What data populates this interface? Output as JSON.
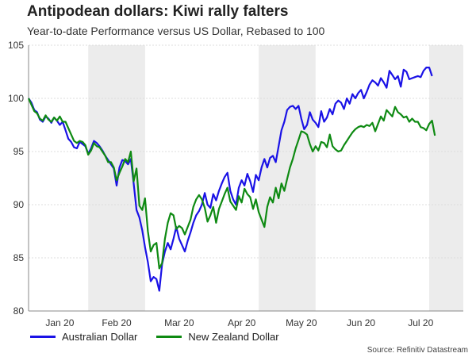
{
  "title": "Antipodean dollars: Kiwi rally falters",
  "subtitle": "Year-to-date Performance versus US Dollar, Rebased to 100",
  "source": "Source: Refinitiv Datastream",
  "colors": {
    "aud": "#1a12e6",
    "nzd": "#0e8a12",
    "shade": "#ececec",
    "grid": "#dddddd"
  },
  "chart_data": {
    "type": "line",
    "title": "Antipodean dollars: Kiwi rally falters",
    "xlabel": "",
    "ylabel": "",
    "ylim": [
      80,
      105
    ],
    "yticks": [
      80,
      85,
      90,
      95,
      100,
      105
    ],
    "xlim": [
      0,
      153
    ],
    "month_labels": [
      {
        "label": "Jan 20",
        "pos": 11
      },
      {
        "label": "Feb 20",
        "pos": 31
      },
      {
        "label": "Mar 20",
        "pos": 53
      },
      {
        "label": "Apr 20",
        "pos": 75
      },
      {
        "label": "May 20",
        "pos": 96
      },
      {
        "label": "Jun 20",
        "pos": 117
      },
      {
        "label": "Jul 20",
        "pos": 138
      }
    ],
    "shaded_bands": [
      [
        21,
        41
      ],
      [
        81,
        101
      ],
      [
        141,
        153
      ]
    ],
    "legend": [
      "Australian Dollar",
      "New Zealand Dollar"
    ],
    "series": [
      {
        "name": "Australian Dollar",
        "color": "#1a12e6",
        "points": [
          [
            0,
            100
          ],
          [
            1,
            99.6
          ],
          [
            2,
            98.9
          ],
          [
            3,
            98.7
          ],
          [
            4,
            98.0
          ],
          [
            5,
            97.8
          ],
          [
            6,
            98.3
          ],
          [
            7,
            98.1
          ],
          [
            8,
            97.7
          ],
          [
            9,
            98.2
          ],
          [
            10,
            97.9
          ],
          [
            11,
            97.5
          ],
          [
            12,
            97.8
          ],
          [
            13,
            97.0
          ],
          [
            14,
            96.2
          ],
          [
            15,
            95.9
          ],
          [
            16,
            95.4
          ],
          [
            17,
            95.3
          ],
          [
            18,
            95.9
          ],
          [
            19,
            95.7
          ],
          [
            20,
            95.5
          ],
          [
            21,
            94.8
          ],
          [
            22,
            95.3
          ],
          [
            23,
            96.0
          ],
          [
            24,
            95.8
          ],
          [
            25,
            95.5
          ],
          [
            26,
            95.1
          ],
          [
            27,
            94.6
          ],
          [
            28,
            94.2
          ],
          [
            29,
            93.8
          ],
          [
            30,
            93.4
          ],
          [
            31,
            91.8
          ],
          [
            32,
            93.5
          ],
          [
            33,
            94.2
          ],
          [
            34,
            94.1
          ],
          [
            35,
            93.8
          ],
          [
            36,
            94.3
          ],
          [
            37,
            92.0
          ],
          [
            38,
            89.5
          ],
          [
            39,
            88.8
          ],
          [
            40,
            87.6
          ],
          [
            41,
            86.0
          ],
          [
            42,
            84.6
          ],
          [
            43,
            82.8
          ],
          [
            44,
            83.2
          ],
          [
            45,
            83.0
          ],
          [
            46,
            81.9
          ],
          [
            47,
            84.4
          ],
          [
            48,
            85.6
          ],
          [
            49,
            86.4
          ],
          [
            50,
            85.8
          ],
          [
            51,
            86.8
          ],
          [
            52,
            87.9
          ],
          [
            53,
            86.8
          ],
          [
            54,
            86.2
          ],
          [
            55,
            85.6
          ],
          [
            56,
            86.6
          ],
          [
            57,
            87.4
          ],
          [
            58,
            88.3
          ],
          [
            59,
            89.0
          ],
          [
            60,
            89.4
          ],
          [
            61,
            90.0
          ],
          [
            62,
            91.1
          ],
          [
            63,
            90.0
          ],
          [
            64,
            89.7
          ],
          [
            65,
            91.0
          ],
          [
            66,
            90.4
          ],
          [
            67,
            91.3
          ],
          [
            68,
            92.0
          ],
          [
            69,
            92.6
          ],
          [
            70,
            93.0
          ],
          [
            71,
            91.3
          ],
          [
            72,
            90.5
          ],
          [
            73,
            90.0
          ],
          [
            74,
            91.6
          ],
          [
            75,
            92.3
          ],
          [
            76,
            91.8
          ],
          [
            77,
            92.9
          ],
          [
            78,
            92.2
          ],
          [
            79,
            91.2
          ],
          [
            80,
            92.8
          ],
          [
            81,
            92.3
          ],
          [
            82,
            93.5
          ],
          [
            83,
            94.3
          ],
          [
            84,
            93.5
          ],
          [
            85,
            94.4
          ],
          [
            86,
            94.6
          ],
          [
            87,
            94.0
          ],
          [
            88,
            95.5
          ],
          [
            89,
            97.0
          ],
          [
            90,
            97.8
          ],
          [
            91,
            98.9
          ],
          [
            92,
            99.2
          ],
          [
            93,
            99.3
          ],
          [
            94,
            99.0
          ],
          [
            95,
            99.3
          ],
          [
            96,
            98.1
          ],
          [
            97,
            97.1
          ],
          [
            98,
            97.5
          ],
          [
            99,
            98.7
          ],
          [
            100,
            98.0
          ],
          [
            101,
            97.7
          ],
          [
            102,
            97.3
          ],
          [
            103,
            98.8
          ],
          [
            104,
            97.8
          ],
          [
            105,
            98.2
          ],
          [
            106,
            99.0
          ],
          [
            107,
            98.5
          ],
          [
            108,
            99.5
          ],
          [
            109,
            99.8
          ],
          [
            110,
            99.6
          ],
          [
            111,
            99.0
          ],
          [
            112,
            100.0
          ],
          [
            113,
            99.5
          ],
          [
            114,
            100.4
          ],
          [
            115,
            100.0
          ],
          [
            116,
            100.5
          ],
          [
            117,
            100.8
          ],
          [
            118,
            100.0
          ],
          [
            119,
            100.6
          ],
          [
            120,
            101.3
          ],
          [
            121,
            101.7
          ],
          [
            122,
            101.5
          ],
          [
            123,
            101.2
          ],
          [
            124,
            101.9
          ],
          [
            125,
            101.5
          ],
          [
            126,
            101.0
          ],
          [
            127,
            102.6
          ],
          [
            128,
            102.2
          ],
          [
            129,
            101.8
          ],
          [
            130,
            102.1
          ],
          [
            131,
            101.1
          ],
          [
            132,
            102.7
          ],
          [
            133,
            102.5
          ],
          [
            134,
            101.8
          ],
          [
            135,
            101.9
          ],
          [
            136,
            102.0
          ],
          [
            137,
            102.1
          ],
          [
            138,
            102.0
          ],
          [
            139,
            102.6
          ],
          [
            140,
            102.9
          ],
          [
            141,
            102.9
          ],
          [
            142,
            102.1
          ]
        ]
      },
      {
        "name": "New Zealand Dollar",
        "color": "#0e8a12",
        "points": [
          [
            0,
            100
          ],
          [
            1,
            99.4
          ],
          [
            2,
            98.8
          ],
          [
            3,
            98.6
          ],
          [
            4,
            98.1
          ],
          [
            5,
            97.9
          ],
          [
            6,
            98.4
          ],
          [
            7,
            98.0
          ],
          [
            8,
            97.8
          ],
          [
            9,
            98.2
          ],
          [
            10,
            97.9
          ],
          [
            11,
            98.3
          ],
          [
            12,
            97.8
          ],
          [
            13,
            97.8
          ],
          [
            14,
            97.2
          ],
          [
            15,
            96.6
          ],
          [
            16,
            96.0
          ],
          [
            17,
            95.8
          ],
          [
            18,
            96.0
          ],
          [
            19,
            95.9
          ],
          [
            20,
            95.6
          ],
          [
            21,
            94.7
          ],
          [
            22,
            95.1
          ],
          [
            23,
            95.8
          ],
          [
            24,
            95.5
          ],
          [
            25,
            95.4
          ],
          [
            26,
            95.0
          ],
          [
            27,
            94.6
          ],
          [
            28,
            94.0
          ],
          [
            29,
            94.0
          ],
          [
            30,
            93.5
          ],
          [
            31,
            92.3
          ],
          [
            32,
            93.0
          ],
          [
            33,
            93.6
          ],
          [
            34,
            94.3
          ],
          [
            35,
            94.0
          ],
          [
            36,
            95.0
          ],
          [
            37,
            92.2
          ],
          [
            38,
            93.4
          ],
          [
            39,
            89.9
          ],
          [
            40,
            89.5
          ],
          [
            41,
            90.6
          ],
          [
            42,
            87.5
          ],
          [
            43,
            85.6
          ],
          [
            44,
            86.2
          ],
          [
            45,
            86.4
          ],
          [
            46,
            84.0
          ],
          [
            47,
            84.5
          ],
          [
            48,
            86.8
          ],
          [
            49,
            88.3
          ],
          [
            50,
            89.2
          ],
          [
            51,
            89.0
          ],
          [
            52,
            87.7
          ],
          [
            53,
            88.0
          ],
          [
            54,
            87.8
          ],
          [
            55,
            87.2
          ],
          [
            56,
            87.9
          ],
          [
            57,
            88.6
          ],
          [
            58,
            89.8
          ],
          [
            59,
            90.5
          ],
          [
            60,
            90.9
          ],
          [
            61,
            90.5
          ],
          [
            62,
            89.7
          ],
          [
            63,
            88.4
          ],
          [
            64,
            89.0
          ],
          [
            65,
            89.8
          ],
          [
            66,
            88.3
          ],
          [
            67,
            89.6
          ],
          [
            68,
            90.3
          ],
          [
            69,
            91.0
          ],
          [
            70,
            91.6
          ],
          [
            71,
            90.3
          ],
          [
            72,
            89.9
          ],
          [
            73,
            89.5
          ],
          [
            74,
            90.8
          ],
          [
            75,
            90.2
          ],
          [
            76,
            91.5
          ],
          [
            77,
            91.0
          ],
          [
            78,
            90.7
          ],
          [
            79,
            89.6
          ],
          [
            80,
            90.5
          ],
          [
            81,
            89.3
          ],
          [
            82,
            88.6
          ],
          [
            83,
            87.9
          ],
          [
            84,
            89.8
          ],
          [
            85,
            90.7
          ],
          [
            86,
            90.2
          ],
          [
            87,
            91.6
          ],
          [
            88,
            90.6
          ],
          [
            89,
            92.0
          ],
          [
            90,
            91.3
          ],
          [
            91,
            92.4
          ],
          [
            92,
            93.5
          ],
          [
            93,
            94.3
          ],
          [
            94,
            95.3
          ],
          [
            95,
            96.1
          ],
          [
            96,
            96.9
          ],
          [
            97,
            96.8
          ],
          [
            98,
            96.6
          ],
          [
            99,
            95.7
          ],
          [
            100,
            95.0
          ],
          [
            101,
            95.5
          ],
          [
            102,
            95.1
          ],
          [
            103,
            95.9
          ],
          [
            104,
            95.8
          ],
          [
            105,
            95.4
          ],
          [
            106,
            96.6
          ],
          [
            107,
            95.5
          ],
          [
            108,
            95.2
          ],
          [
            109,
            95.0
          ],
          [
            110,
            95.1
          ],
          [
            111,
            95.6
          ],
          [
            112,
            96.0
          ],
          [
            113,
            96.4
          ],
          [
            114,
            96.8
          ],
          [
            115,
            97.1
          ],
          [
            116,
            97.3
          ],
          [
            117,
            97.4
          ],
          [
            118,
            97.3
          ],
          [
            119,
            97.5
          ],
          [
            120,
            97.4
          ],
          [
            121,
            97.7
          ],
          [
            122,
            96.9
          ],
          [
            123,
            97.6
          ],
          [
            124,
            98.3
          ],
          [
            125,
            97.9
          ],
          [
            126,
            98.9
          ],
          [
            127,
            98.6
          ],
          [
            128,
            98.3
          ],
          [
            129,
            99.2
          ],
          [
            130,
            98.7
          ],
          [
            131,
            98.5
          ],
          [
            132,
            98.2
          ],
          [
            133,
            98.3
          ],
          [
            134,
            97.8
          ],
          [
            135,
            98.1
          ],
          [
            136,
            97.8
          ],
          [
            137,
            97.8
          ],
          [
            138,
            97.3
          ],
          [
            139,
            97.2
          ],
          [
            140,
            97.0
          ],
          [
            141,
            97.6
          ],
          [
            142,
            97.9
          ],
          [
            143,
            96.5
          ]
        ]
      }
    ]
  }
}
